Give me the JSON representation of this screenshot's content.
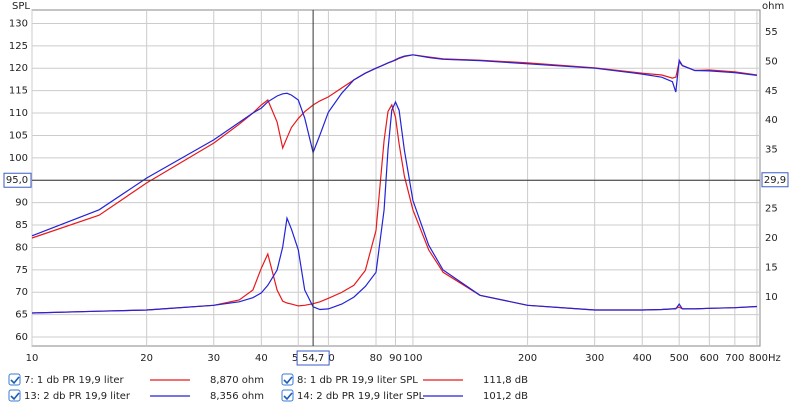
{
  "chart_data": {
    "type": "line",
    "y_label": "SPL",
    "y2_label": "ohm",
    "log_x": true,
    "grid": true,
    "xlim": [
      10,
      815
    ],
    "ylim": [
      58,
      133
    ],
    "y2lim": [
      1.7,
      58.7
    ],
    "xticks": [
      10,
      20,
      30,
      40,
      50,
      60,
      80,
      90,
      100,
      200,
      300,
      400,
      500,
      600,
      700,
      {
        "value": 800,
        "label": "800Hz"
      }
    ],
    "yticks": [
      60,
      65,
      70,
      75,
      80,
      85,
      90,
      95,
      100,
      105,
      110,
      115,
      120,
      125,
      130
    ],
    "y2ticks": [
      10,
      15,
      20,
      25,
      30,
      35,
      40,
      45,
      50,
      55
    ],
    "cursor": {
      "x": 54.7,
      "x_label": "54,7",
      "y": 95,
      "y_label": "95,0",
      "y2": 29.9,
      "y2_label": "29,9"
    },
    "x": [
      10,
      15,
      20,
      30,
      35,
      38,
      40,
      41.6,
      44,
      45.5,
      46.7,
      48,
      50,
      52,
      54.7,
      57,
      60,
      65,
      70,
      75,
      80,
      84,
      86,
      88,
      90,
      92,
      95,
      100,
      110,
      120,
      150,
      200,
      300,
      400,
      450,
      480,
      490,
      500,
      510,
      550,
      600,
      700,
      800
    ],
    "series": [
      {
        "name": "7: 1 db PR 19,9 liter",
        "readout": "8,870 ohm",
        "color": "#e8191c",
        "axis": "y2",
        "values": [
          7.3,
          7.6,
          7.8,
          8.6,
          9.5,
          11.2,
          14.9,
          17.3,
          11.2,
          9.3,
          9.0,
          8.8,
          8.5,
          8.6,
          8.87,
          9.2,
          9.8,
          10.8,
          12.0,
          14.5,
          21.3,
          36.6,
          41.5,
          42.6,
          40.5,
          36.0,
          30.5,
          24.8,
          18.0,
          14.2,
          10.3,
          8.6,
          7.8,
          7.8,
          7.9,
          8.0,
          8.1,
          8.3,
          8.0,
          8.0,
          8.1,
          8.2,
          8.4
        ]
      },
      {
        "name": "8: 1 db PR 19,9 liter SPL",
        "readout": "111,8 dB",
        "color": "#e8191c",
        "values": [
          82.1,
          87.2,
          94.4,
          103.3,
          107.5,
          110.0,
          111.8,
          112.9,
          108.0,
          102.2,
          104.5,
          106.8,
          108.8,
          110.3,
          111.8,
          112.7,
          113.6,
          115.6,
          117.4,
          118.9,
          120.0,
          120.8,
          121.2,
          121.5,
          121.8,
          122.2,
          122.6,
          123.0,
          122.5,
          122.1,
          121.8,
          121.2,
          120.1,
          118.9,
          118.5,
          117.8,
          118.0,
          121.4,
          120.6,
          119.5,
          119.6,
          119.2,
          118.5
        ]
      },
      {
        "name": "13: 2 db PR 19,9 liter",
        "readout": "8,356 ohm",
        "color": "#2323d8",
        "axis": "y2",
        "values": [
          7.3,
          7.6,
          7.8,
          8.6,
          9.2,
          9.9,
          10.7,
          12.0,
          14.6,
          18.5,
          23.4,
          21.5,
          18.0,
          11.2,
          8.356,
          7.9,
          8.0,
          8.8,
          10.0,
          11.8,
          14.2,
          24.8,
          35.0,
          41.7,
          43.1,
          41.7,
          34.9,
          26.4,
          18.8,
          14.6,
          10.3,
          8.6,
          7.8,
          7.8,
          7.9,
          8.0,
          8.0,
          8.8,
          8.0,
          8.0,
          8.1,
          8.2,
          8.4
        ]
      },
      {
        "name": "14: 2 db PR 19,9 liter SPL",
        "readout": "101,2 dB",
        "color": "#2323d8",
        "values": [
          82.6,
          88.4,
          95.5,
          104.0,
          107.9,
          110.0,
          111.1,
          112.5,
          113.8,
          114.3,
          114.4,
          114.0,
          112.9,
          108.9,
          101.2,
          105.1,
          110.2,
          114.4,
          117.4,
          118.9,
          120.0,
          120.8,
          121.2,
          121.5,
          121.9,
          122.3,
          122.7,
          123.0,
          122.4,
          122.0,
          121.7,
          121.0,
          120.0,
          118.7,
          118.0,
          117.0,
          114.7,
          121.8,
          120.6,
          119.5,
          119.4,
          119.0,
          118.4
        ]
      }
    ]
  }
}
